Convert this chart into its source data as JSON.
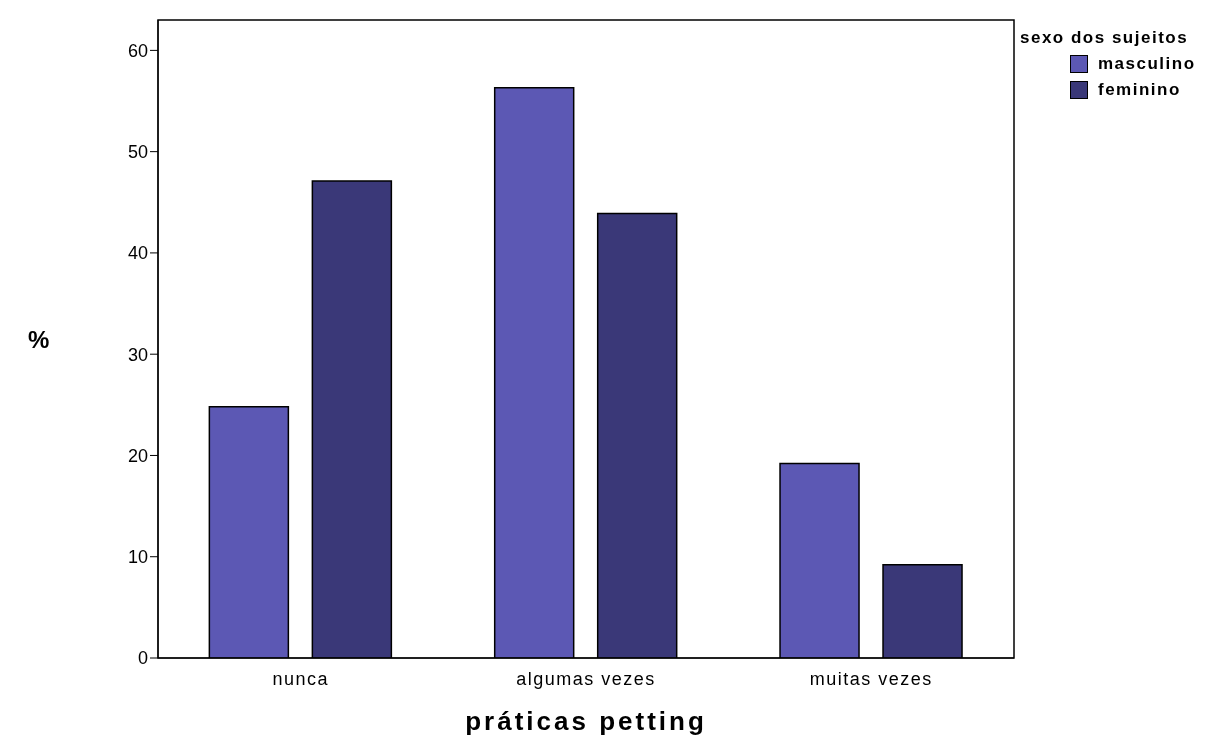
{
  "chart_data": {
    "type": "bar",
    "xlabel": "práticas petting",
    "ylabel": "%",
    "legend_title": "sexo dos sujeitos",
    "categories": [
      "nunca",
      "algumas vezes",
      "muitas vezes"
    ],
    "series": [
      {
        "name": "masculino",
        "color": "#5c58b4",
        "values": [
          24.8,
          56.3,
          19.2
        ]
      },
      {
        "name": "feminino",
        "color": "#3a3878",
        "values": [
          47.1,
          43.9,
          9.2
        ]
      }
    ],
    "ylim": [
      0,
      63
    ],
    "yticks": [
      0,
      10,
      20,
      30,
      40,
      50,
      60
    ],
    "grid": false,
    "legend": "top right"
  }
}
